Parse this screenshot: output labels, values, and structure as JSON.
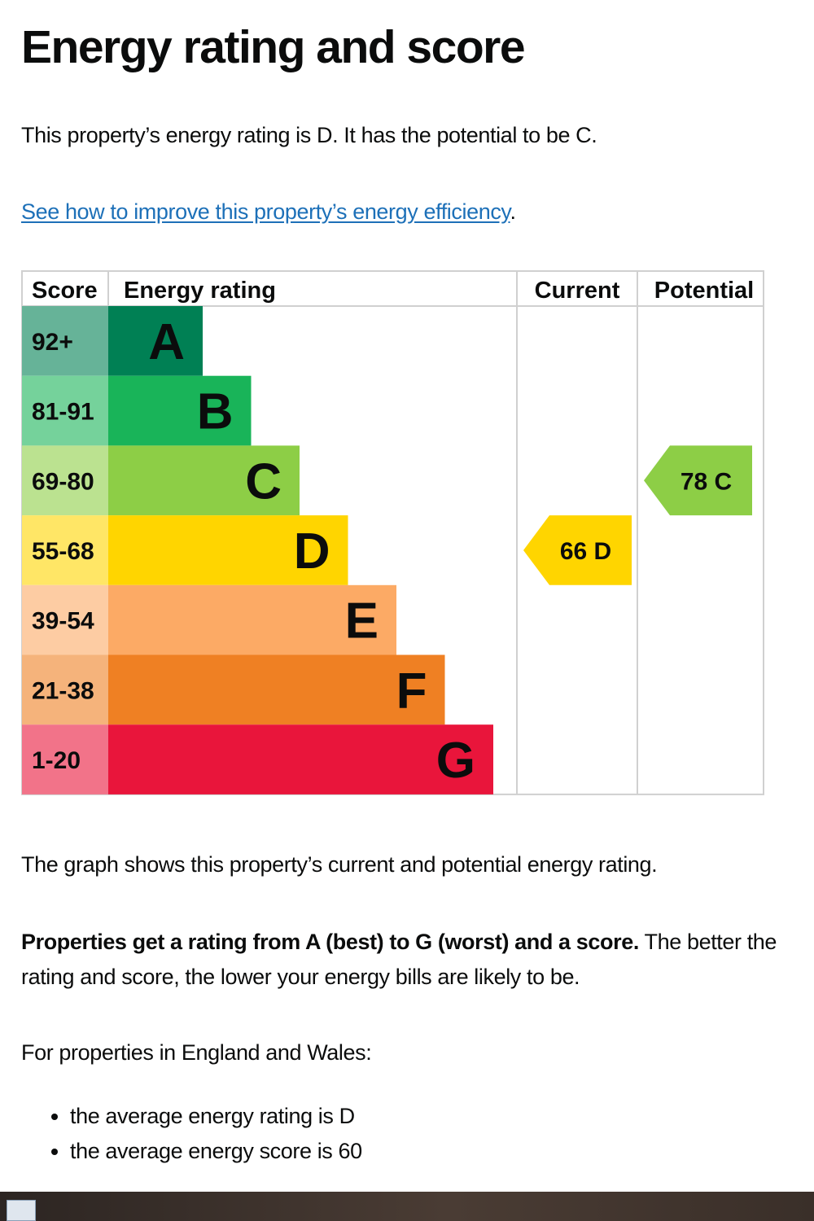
{
  "title": "Energy rating and score",
  "intro": "This property’s energy rating is D. It has the potential to be C.",
  "improve_link": "See how to improve this property’s energy efficiency",
  "improve_suffix": ".",
  "chart_data": {
    "type": "table",
    "headers": {
      "score": "Score",
      "rating": "Energy rating",
      "current": "Current",
      "potential": "Potential"
    },
    "bands": [
      {
        "score": "92+",
        "letter": "A",
        "color": "#008054",
        "score_bg": "#66b398"
      },
      {
        "score": "81-91",
        "letter": "B",
        "color": "#19b459",
        "score_bg": "#75d29b"
      },
      {
        "score": "69-80",
        "letter": "C",
        "color": "#8dce46",
        "score_bg": "#bbe290"
      },
      {
        "score": "55-68",
        "letter": "D",
        "color": "#ffd500",
        "score_bg": "#ffe666"
      },
      {
        "score": "39-54",
        "letter": "E",
        "color": "#fcaa65",
        "score_bg": "#fdcca3"
      },
      {
        "score": "21-38",
        "letter": "F",
        "color": "#ef8023",
        "score_bg": "#f5b37b"
      },
      {
        "score": "1-20",
        "letter": "G",
        "color": "#e9153b",
        "score_bg": "#f27389"
      }
    ],
    "current": {
      "score": 66,
      "letter": "D",
      "label": "66  D"
    },
    "potential": {
      "score": 78,
      "letter": "C",
      "label": "78  C"
    }
  },
  "graph_note": "The graph shows this property’s current and potential energy rating.",
  "ratings_bold": "Properties get a rating from A (best) to G (worst) and a score.",
  "ratings_rest": " The better the rating and score, the lower your energy bills are likely to be.",
  "england_wales": "For properties in England and Wales:",
  "averages": [
    "the average energy rating is D",
    "the average energy score is 60"
  ]
}
